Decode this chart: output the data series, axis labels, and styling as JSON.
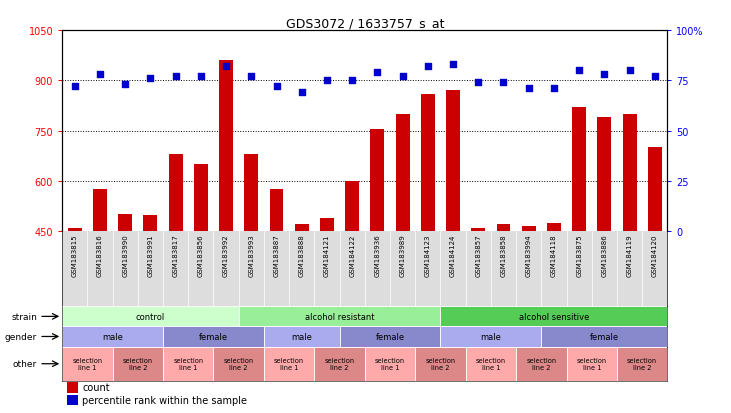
{
  "title": "GDS3072 / 1633757_s_at",
  "samples": [
    "GSM183815",
    "GSM183816",
    "GSM183990",
    "GSM183991",
    "GSM183817",
    "GSM183856",
    "GSM183992",
    "GSM183993",
    "GSM183887",
    "GSM183888",
    "GSM184121",
    "GSM184122",
    "GSM183936",
    "GSM183989",
    "GSM184123",
    "GSM184124",
    "GSM183857",
    "GSM183858",
    "GSM183994",
    "GSM184118",
    "GSM183875",
    "GSM183886",
    "GSM184119",
    "GSM184120"
  ],
  "counts": [
    460,
    575,
    500,
    498,
    680,
    650,
    960,
    680,
    575,
    470,
    490,
    600,
    755,
    800,
    860,
    870,
    460,
    470,
    465,
    475,
    820,
    790,
    800,
    700
  ],
  "percentiles": [
    72,
    78,
    73,
    76,
    77,
    77,
    82,
    77,
    72,
    69,
    75,
    75,
    79,
    77,
    82,
    83,
    74,
    74,
    71,
    71,
    80,
    78,
    80,
    77
  ],
  "ymin": 450,
  "ymax": 1050,
  "yticks_left": [
    450,
    600,
    750,
    900,
    1050
  ],
  "yticks_right": [
    0,
    25,
    50,
    75,
    100
  ],
  "bar_color": "#cc0000",
  "dot_color": "#0000cc",
  "grid_values": [
    600,
    750,
    900
  ],
  "strain_groups": [
    {
      "label": "control",
      "start": 0,
      "end": 7,
      "color": "#ccffcc"
    },
    {
      "label": "alcohol resistant",
      "start": 7,
      "end": 15,
      "color": "#99ee99"
    },
    {
      "label": "alcohol sensitive",
      "start": 15,
      "end": 24,
      "color": "#55cc55"
    }
  ],
  "gender_groups": [
    {
      "label": "male",
      "start": 0,
      "end": 4,
      "color": "#aaaaee"
    },
    {
      "label": "female",
      "start": 4,
      "end": 8,
      "color": "#8888cc"
    },
    {
      "label": "male",
      "start": 8,
      "end": 11,
      "color": "#aaaaee"
    },
    {
      "label": "female",
      "start": 11,
      "end": 15,
      "color": "#8888cc"
    },
    {
      "label": "male",
      "start": 15,
      "end": 19,
      "color": "#aaaaee"
    },
    {
      "label": "female",
      "start": 19,
      "end": 24,
      "color": "#8888cc"
    }
  ],
  "other_groups": [
    {
      "label": "selection\nline 1",
      "start": 0,
      "end": 2,
      "color": "#ffaaaa"
    },
    {
      "label": "selection\nline 2",
      "start": 2,
      "end": 4,
      "color": "#dd8888"
    },
    {
      "label": "selection\nline 1",
      "start": 4,
      "end": 6,
      "color": "#ffaaaa"
    },
    {
      "label": "selection\nline 2",
      "start": 6,
      "end": 8,
      "color": "#dd8888"
    },
    {
      "label": "selection\nline 1",
      "start": 8,
      "end": 10,
      "color": "#ffaaaa"
    },
    {
      "label": "selection\nline 2",
      "start": 10,
      "end": 12,
      "color": "#dd8888"
    },
    {
      "label": "selection\nline 1",
      "start": 12,
      "end": 14,
      "color": "#ffaaaa"
    },
    {
      "label": "selection\nline 2",
      "start": 14,
      "end": 16,
      "color": "#dd8888"
    },
    {
      "label": "selection\nline 1",
      "start": 16,
      "end": 18,
      "color": "#ffaaaa"
    },
    {
      "label": "selection\nline 2",
      "start": 18,
      "end": 20,
      "color": "#dd8888"
    },
    {
      "label": "selection\nline 1",
      "start": 20,
      "end": 22,
      "color": "#ffaaaa"
    },
    {
      "label": "selection\nline 2",
      "start": 22,
      "end": 24,
      "color": "#dd8888"
    }
  ],
  "label_fontsize": 6.0,
  "row_label_fontsize": 6.5,
  "name_fontsize": 5.0,
  "bar_width": 0.55
}
